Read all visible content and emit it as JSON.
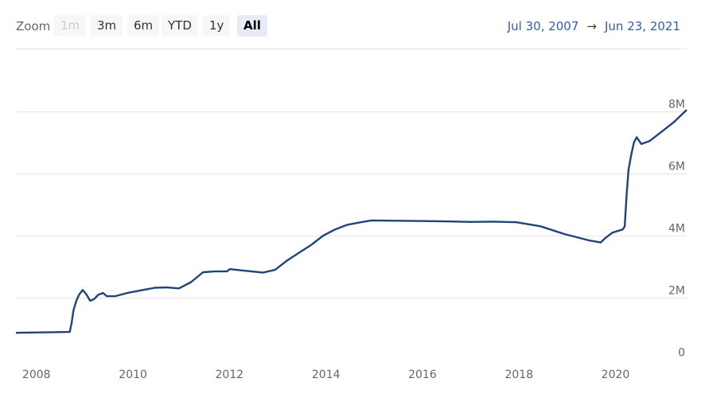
{
  "zoom": {
    "label": "Zoom",
    "buttons": [
      {
        "label": "1m",
        "state": "disabled"
      },
      {
        "label": "3m",
        "state": "normal"
      },
      {
        "label": "6m",
        "state": "normal"
      },
      {
        "label": "YTD",
        "state": "normal"
      },
      {
        "label": "1y",
        "state": "normal"
      },
      {
        "label": "All",
        "state": "active"
      }
    ]
  },
  "range": {
    "from": "Jul 30, 2007",
    "arrow": "→",
    "to": "Jun 23, 2021"
  },
  "chart_data": {
    "type": "line",
    "x_range": [
      "2007-07-30",
      "2021-06-23"
    ],
    "ylim": [
      0,
      8000000
    ],
    "yticks": [
      {
        "value": 0,
        "label": "0"
      },
      {
        "value": 2000000,
        "label": "2M"
      },
      {
        "value": 4000000,
        "label": "4M"
      },
      {
        "value": 6000000,
        "label": "6M"
      },
      {
        "value": 8000000,
        "label": "8M"
      }
    ],
    "xticks": [
      "2008",
      "2010",
      "2012",
      "2014",
      "2016",
      "2018",
      "2020"
    ],
    "grid": true,
    "series": [
      {
        "color": "#1f4578",
        "points": [
          [
            "2007-07-30",
            870000
          ],
          [
            "2008-01-01",
            880000
          ],
          [
            "2008-06-01",
            890000
          ],
          [
            "2008-09-10",
            900000
          ],
          [
            "2008-09-24",
            1200000
          ],
          [
            "2008-10-08",
            1600000
          ],
          [
            "2008-10-29",
            1900000
          ],
          [
            "2008-11-19",
            2100000
          ],
          [
            "2008-12-17",
            2250000
          ],
          [
            "2009-01-14",
            2100000
          ],
          [
            "2009-02-11",
            1900000
          ],
          [
            "2009-03-11",
            1950000
          ],
          [
            "2009-04-15",
            2100000
          ],
          [
            "2009-05-20",
            2150000
          ],
          [
            "2009-06-17",
            2050000
          ],
          [
            "2009-08-19",
            2050000
          ],
          [
            "2009-11-18",
            2150000
          ],
          [
            "2010-03-17",
            2250000
          ],
          [
            "2010-06-16",
            2320000
          ],
          [
            "2010-09-15",
            2330000
          ],
          [
            "2010-12-15",
            2300000
          ],
          [
            "2011-03-16",
            2500000
          ],
          [
            "2011-06-15",
            2820000
          ],
          [
            "2011-09-14",
            2850000
          ],
          [
            "2011-12-14",
            2850000
          ],
          [
            "2012-01-04",
            2920000
          ],
          [
            "2012-03-14",
            2890000
          ],
          [
            "2012-06-13",
            2850000
          ],
          [
            "2012-09-12",
            2810000
          ],
          [
            "2012-12-12",
            2900000
          ],
          [
            "2013-03-13",
            3200000
          ],
          [
            "2013-06-12",
            3450000
          ],
          [
            "2013-09-11",
            3700000
          ],
          [
            "2013-12-11",
            4000000
          ],
          [
            "2014-03-12",
            4200000
          ],
          [
            "2014-06-11",
            4350000
          ],
          [
            "2014-09-10",
            4420000
          ],
          [
            "2014-12-10",
            4490000
          ],
          [
            "2015-06-10",
            4480000
          ],
          [
            "2016-01-06",
            4470000
          ],
          [
            "2016-06-15",
            4460000
          ],
          [
            "2017-01-04",
            4440000
          ],
          [
            "2017-06-14",
            4450000
          ],
          [
            "2017-12-13",
            4430000
          ],
          [
            "2018-06-13",
            4300000
          ],
          [
            "2018-12-12",
            4050000
          ],
          [
            "2019-06-12",
            3850000
          ],
          [
            "2019-09-11",
            3780000
          ],
          [
            "2019-10-16",
            3920000
          ],
          [
            "2019-12-11",
            4100000
          ],
          [
            "2020-02-26",
            4200000
          ],
          [
            "2020-03-11",
            4300000
          ],
          [
            "2020-03-25",
            5300000
          ],
          [
            "2020-04-08",
            6100000
          ],
          [
            "2020-04-29",
            6600000
          ],
          [
            "2020-05-20",
            7000000
          ],
          [
            "2020-06-10",
            7170000
          ],
          [
            "2020-07-15",
            6950000
          ],
          [
            "2020-09-16",
            7050000
          ],
          [
            "2020-12-16",
            7350000
          ],
          [
            "2021-03-17",
            7650000
          ],
          [
            "2021-06-23",
            8050000
          ]
        ]
      }
    ]
  }
}
